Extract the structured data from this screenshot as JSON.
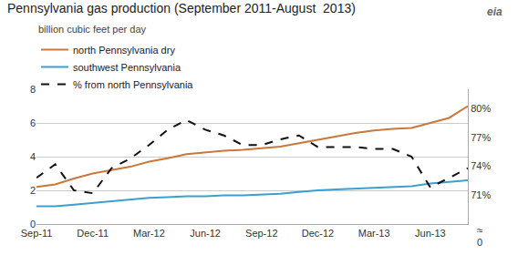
{
  "chart_data": {
    "type": "line",
    "title": "Pennsylvania gas production (September 2011-August  2013)",
    "subtitle": "billion cubic feet per day",
    "categories": [
      "Sep-11",
      null,
      null,
      "Dec-11",
      null,
      null,
      "Mar-12",
      null,
      null,
      "Jun-12",
      null,
      null,
      "Sep-12",
      null,
      null,
      "Dec-12",
      null,
      null,
      "Mar-13",
      null,
      null,
      "Jun-13",
      null,
      null
    ],
    "series": [
      {
        "name": "north Pennsylvania dry",
        "color": "#C8783A",
        "line_style": "solid",
        "values": [
          2.2,
          2.35,
          2.7,
          3.0,
          3.2,
          3.4,
          3.7,
          3.9,
          4.15,
          4.25,
          4.35,
          4.4,
          4.5,
          4.6,
          4.8,
          5.0,
          5.2,
          5.4,
          5.55,
          5.65,
          5.7,
          6.0,
          6.3,
          7.0
        ]
      },
      {
        "name": "southwest Pennsylvania",
        "color": "#3D9FCC",
        "line_style": "solid",
        "values": [
          1.05,
          1.05,
          1.15,
          1.25,
          1.35,
          1.45,
          1.55,
          1.6,
          1.65,
          1.65,
          1.7,
          1.7,
          1.75,
          1.8,
          1.9,
          2.0,
          2.05,
          2.1,
          2.15,
          2.2,
          2.25,
          2.4,
          2.5,
          2.6
        ]
      },
      {
        "name": "% from north Pennsylvania",
        "color": "#111111",
        "line_style": "dashed",
        "axis": "y2",
        "values": [
          72.8,
          74.2,
          71.5,
          71.2,
          73.8,
          74.8,
          76.2,
          77.8,
          78.8,
          77.8,
          77.2,
          76.2,
          76.2,
          76.8,
          77.2,
          76.0,
          76.0,
          76.0,
          75.8,
          75.8,
          75.0,
          71.8,
          72.8,
          73.8
        ]
      }
    ],
    "ylim": [
      0,
      8
    ],
    "yticks": [
      0,
      2,
      4,
      6,
      8
    ],
    "y2lim": [
      68.0,
      82.0
    ],
    "y2ticks": [
      {
        "value": 71,
        "label": "71%"
      },
      {
        "value": 74,
        "label": "74%"
      },
      {
        "value": 77,
        "label": "77%"
      },
      {
        "value": 80,
        "label": "80%"
      }
    ],
    "annotations": [
      "≈",
      "0",
      "eia"
    ],
    "grid": true,
    "legend": "top left"
  }
}
